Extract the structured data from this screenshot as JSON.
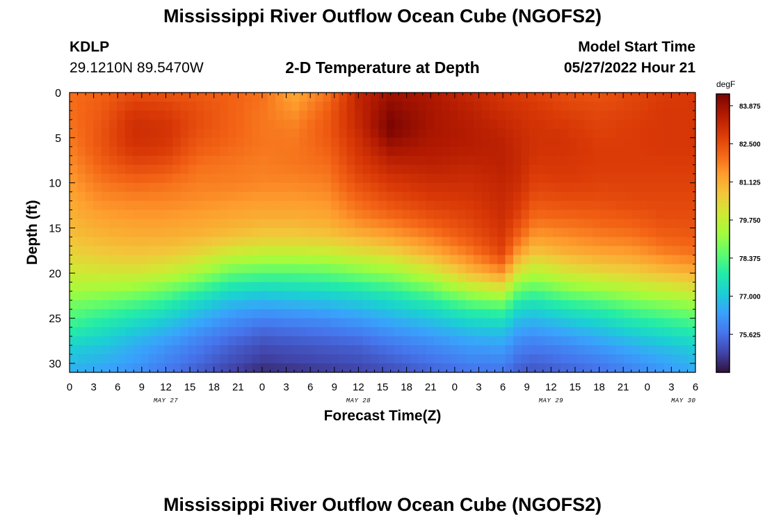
{
  "header": {
    "title": "Mississippi River Outflow Ocean Cube (NGOFS2)",
    "station_id": "KDLP",
    "station_coords": "29.1210N  89.5470W",
    "subtitle": "2-D Temperature at Depth",
    "model_start_label": "Model Start Time",
    "model_start_value": "05/27/2022 Hour 21"
  },
  "footer": {
    "title": "Mississippi River Outflow Ocean Cube (NGOFS2)"
  },
  "chart_data": {
    "type": "heatmap",
    "title": "2-D Temperature at Depth",
    "xlabel": "Forecast Time(Z)",
    "ylabel": "Depth (ft)",
    "x_tick_labels": [
      "0",
      "3",
      "6",
      "9",
      "12",
      "15",
      "18",
      "21",
      "0",
      "3",
      "6",
      "9",
      "12",
      "15",
      "18",
      "21",
      "0",
      "3",
      "6",
      "9",
      "12",
      "15",
      "18",
      "21",
      "0",
      "3",
      "6"
    ],
    "date_labels": [
      {
        "label": "MAY 27",
        "tick_index": 4
      },
      {
        "label": "MAY 28",
        "tick_index": 12
      },
      {
        "label": "MAY 29",
        "tick_index": 20
      },
      {
        "label": "MAY 30",
        "tick_index": 25.5
      }
    ],
    "xlim_hours": [
      0,
      78
    ],
    "y_ticks": [
      0,
      5,
      10,
      15,
      20,
      25,
      30
    ],
    "ylim_ft": [
      0,
      31
    ],
    "y_inverted": true,
    "colorbar": {
      "unit": "degF",
      "ticks": [
        "83.875",
        "82.500",
        "81.125",
        "79.750",
        "78.375",
        "77.000",
        "75.625"
      ],
      "tick_values": [
        83.875,
        82.5,
        81.125,
        79.75,
        78.375,
        77.0,
        75.625
      ],
      "range": [
        74.25,
        84.3
      ]
    },
    "colormap": [
      "#30123b",
      "#4145ab",
      "#4675ed",
      "#39a2fc",
      "#1bcfd4",
      "#24eca6",
      "#61fc6c",
      "#a4fc3b",
      "#d1e834",
      "#f3c63a",
      "#fe9b2d",
      "#f36315",
      "#d93806",
      "#b11901",
      "#7a0402"
    ],
    "grid_columns": 79,
    "grid_rows": 31,
    "depth_ft": [
      0,
      2,
      4,
      6,
      8,
      10,
      12,
      14,
      16,
      18,
      20,
      22,
      24,
      26,
      28,
      30,
      31
    ],
    "profile_columns": [
      "x_hours",
      "0",
      "2",
      "4",
      "6",
      "8",
      "10",
      "12",
      "14",
      "16",
      "18",
      "20",
      "22",
      "24",
      "26",
      "28",
      "30",
      "31"
    ],
    "profiles": [
      [
        0,
        82.0,
        82.0,
        81.9,
        81.8,
        81.6,
        81.4,
        81.2,
        81.0,
        80.8,
        80.4,
        79.9,
        79.3,
        78.6,
        78.0,
        77.2,
        76.8,
        76.6
      ],
      [
        4,
        82.2,
        82.3,
        82.4,
        82.4,
        82.2,
        81.9,
        81.6,
        81.3,
        81.0,
        80.6,
        80.0,
        79.2,
        78.3,
        77.6,
        77.0,
        76.6,
        76.4
      ],
      [
        8,
        82.5,
        82.9,
        83.1,
        83.0,
        82.6,
        82.1,
        81.7,
        81.4,
        81.1,
        80.7,
        80.0,
        79.0,
        78.0,
        77.2,
        76.6,
        76.3,
        76.1
      ],
      [
        12,
        82.4,
        82.8,
        83.0,
        82.9,
        82.5,
        82.0,
        81.7,
        81.4,
        81.1,
        80.6,
        79.8,
        78.6,
        77.6,
        76.8,
        76.2,
        75.9,
        75.7
      ],
      [
        16,
        82.3,
        82.5,
        82.5,
        82.3,
        82.0,
        81.8,
        81.6,
        81.3,
        81.0,
        80.3,
        79.3,
        78.0,
        77.0,
        76.3,
        75.8,
        75.5,
        75.3
      ],
      [
        20,
        82.2,
        82.2,
        82.2,
        82.1,
        81.9,
        81.8,
        81.5,
        81.2,
        80.8,
        79.8,
        78.6,
        77.4,
        76.5,
        75.9,
        75.4,
        75.1,
        74.9
      ],
      [
        24,
        82.0,
        81.9,
        81.9,
        81.9,
        81.8,
        81.7,
        81.4,
        81.1,
        80.6,
        79.6,
        78.4,
        77.2,
        76.3,
        75.6,
        75.1,
        74.8,
        74.6
      ],
      [
        28,
        81.2,
        81.5,
        81.8,
        81.9,
        81.9,
        81.7,
        81.4,
        81.1,
        80.6,
        79.6,
        78.4,
        77.3,
        76.4,
        75.7,
        75.2,
        74.9,
        74.7
      ],
      [
        32,
        81.9,
        82.2,
        82.3,
        82.2,
        82.0,
        81.8,
        81.5,
        81.2,
        80.7,
        79.7,
        78.5,
        77.4,
        76.5,
        75.8,
        75.3,
        75.0,
        74.8
      ],
      [
        36,
        83.3,
        83.3,
        83.2,
        83.0,
        82.8,
        82.5,
        82.1,
        81.7,
        81.0,
        80.0,
        78.8,
        77.6,
        76.7,
        76.0,
        75.4,
        75.1,
        74.9
      ],
      [
        40,
        83.8,
        84.1,
        84.3,
        83.8,
        83.3,
        82.9,
        82.5,
        82.0,
        81.3,
        80.3,
        79.1,
        77.9,
        77.0,
        76.3,
        75.7,
        75.3,
        75.1
      ],
      [
        45,
        83.6,
        83.7,
        83.7,
        83.6,
        83.4,
        83.1,
        82.8,
        82.4,
        81.8,
        81.0,
        79.8,
        78.5,
        77.4,
        76.6,
        76.0,
        75.6,
        75.4
      ],
      [
        50,
        83.2,
        83.4,
        83.5,
        83.5,
        83.3,
        83.1,
        82.9,
        82.7,
        82.4,
        81.8,
        80.9,
        79.4,
        78.0,
        77.0,
        76.3,
        75.9,
        75.6
      ],
      [
        54,
        82.9,
        83.1,
        83.3,
        83.4,
        83.4,
        83.3,
        83.2,
        83.1,
        82.9,
        82.6,
        81.5,
        79.8,
        78.2,
        77.1,
        76.4,
        75.9,
        75.7
      ],
      [
        56,
        82.8,
        83.0,
        83.1,
        83.2,
        83.2,
        83.1,
        82.9,
        82.6,
        82.1,
        81.2,
        79.9,
        78.5,
        77.3,
        76.5,
        75.9,
        75.5,
        75.3
      ],
      [
        58,
        82.7,
        82.9,
        83.0,
        83.0,
        82.9,
        82.7,
        82.4,
        82.0,
        81.4,
        80.6,
        79.5,
        78.3,
        77.2,
        76.4,
        75.8,
        75.4,
        75.2
      ],
      [
        62,
        82.5,
        82.7,
        82.9,
        83.0,
        82.9,
        82.8,
        82.5,
        82.1,
        81.6,
        81.0,
        80.0,
        78.8,
        77.6,
        76.7,
        76.0,
        75.6,
        75.4
      ],
      [
        66,
        82.4,
        82.6,
        82.7,
        82.8,
        82.8,
        82.7,
        82.5,
        82.2,
        81.8,
        81.2,
        80.3,
        79.1,
        77.9,
        77.0,
        76.3,
        75.8,
        75.6
      ],
      [
        70,
        82.6,
        82.7,
        82.8,
        82.8,
        82.8,
        82.7,
        82.6,
        82.3,
        81.9,
        81.3,
        80.5,
        79.4,
        78.3,
        77.4,
        76.6,
        76.1,
        75.9
      ],
      [
        74,
        82.8,
        82.9,
        82.9,
        82.9,
        82.8,
        82.7,
        82.6,
        82.5,
        82.2,
        81.7,
        80.8,
        79.7,
        78.6,
        77.7,
        76.9,
        76.4,
        76.2
      ],
      [
        78,
        82.9,
        82.9,
        82.9,
        82.9,
        82.8,
        82.7,
        82.6,
        82.5,
        82.3,
        81.9,
        81.1,
        80.0,
        78.9,
        78.0,
        77.2,
        76.7,
        76.5
      ]
    ]
  }
}
